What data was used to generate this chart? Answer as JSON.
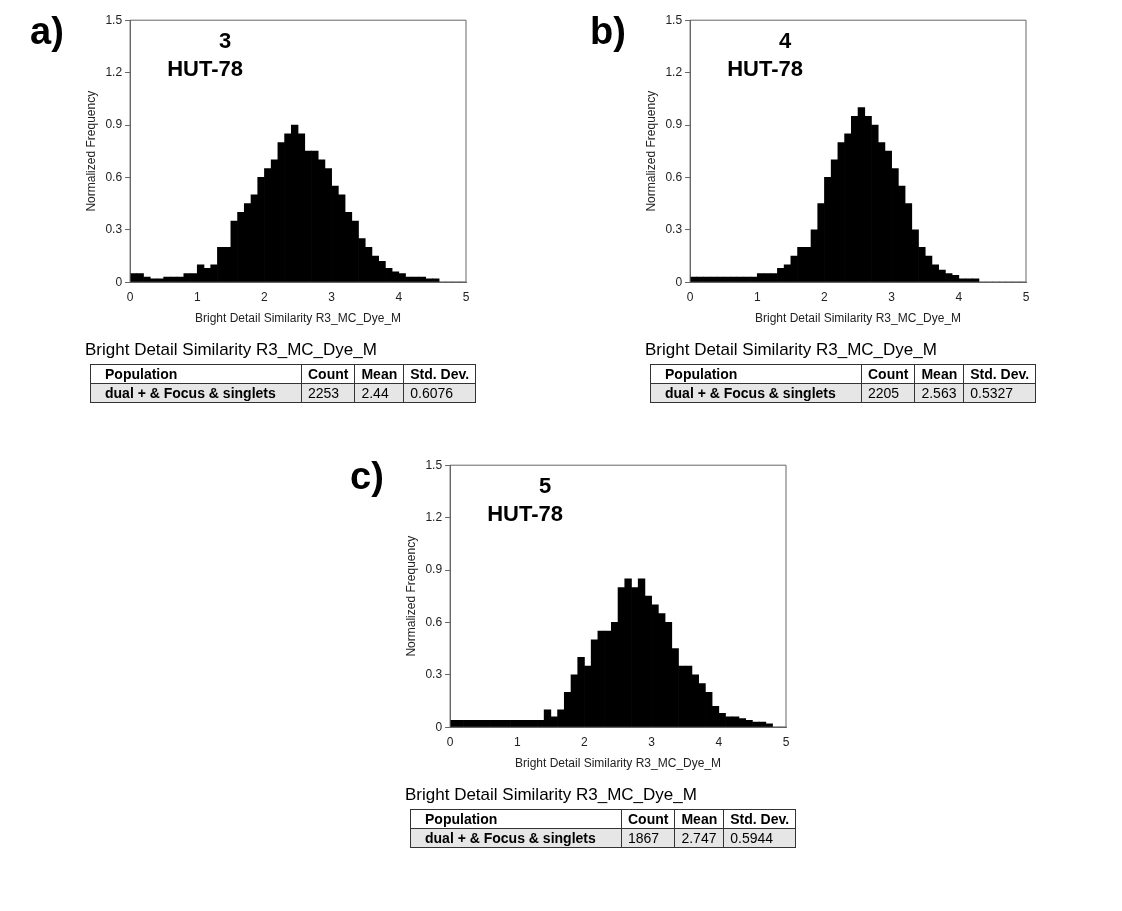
{
  "chart_data": [
    {
      "type": "histogram",
      "title": "a)",
      "xlabel": "Bright Detail Similarity R3_MC_Dye_M",
      "ylabel": "Normalized Frequency",
      "color": "#000000",
      "grid": false,
      "xlim": [
        0,
        5
      ],
      "xticks": [
        0,
        1,
        2,
        3,
        4,
        5
      ],
      "ylim": [
        0,
        1.5
      ],
      "yticks": [
        0,
        0.3,
        0.6,
        0.9,
        1.2,
        1.5
      ],
      "bins": [
        0,
        0.1,
        0.2,
        0.3,
        0.4,
        0.5,
        0.6,
        0.7,
        0.8,
        0.9,
        1,
        1.1,
        1.2,
        1.3,
        1.4,
        1.5,
        1.6,
        1.7,
        1.8,
        1.9,
        2,
        2.1,
        2.2,
        2.3,
        2.4,
        2.5,
        2.6,
        2.7,
        2.8,
        2.9,
        3,
        3.1,
        3.2,
        3.3,
        3.4,
        3.5,
        3.6,
        3.7,
        3.8,
        3.9,
        4,
        4.1,
        4.2,
        4.3,
        4.4,
        4.5,
        4.6,
        4.7,
        4.8,
        4.9,
        5
      ],
      "values": [
        0.05,
        0.05,
        0.03,
        0.02,
        0.02,
        0.03,
        0.03,
        0.03,
        0.05,
        0.05,
        0.1,
        0.08,
        0.1,
        0.2,
        0.2,
        0.35,
        0.4,
        0.45,
        0.5,
        0.6,
        0.65,
        0.7,
        0.8,
        0.85,
        0.9,
        0.85,
        0.75,
        0.75,
        0.7,
        0.65,
        0.55,
        0.5,
        0.4,
        0.35,
        0.25,
        0.2,
        0.15,
        0.12,
        0.08,
        0.06,
        0.05,
        0.03,
        0.03,
        0.03,
        0.02,
        0.02,
        0,
        0,
        0,
        0
      ],
      "annotations": [
        "3",
        "HUT-78",
        "Bright Detail Similarity R3_MC_Dye_M",
        "Population",
        "Count",
        "Mean",
        "Std. Dev.",
        "dual + & Focus & singlets",
        "2253",
        "2.44",
        "0.6076"
      ]
    },
    {
      "type": "histogram",
      "title": "b)",
      "xlabel": "Bright Detail Similarity R3_MC_Dye_M",
      "ylabel": "Normalized Frequency",
      "color": "#000000",
      "grid": false,
      "xlim": [
        0,
        5
      ],
      "xticks": [
        0,
        1,
        2,
        3,
        4,
        5
      ],
      "ylim": [
        0,
        1.5
      ],
      "yticks": [
        0,
        0.3,
        0.6,
        0.9,
        1.2,
        1.5
      ],
      "bins": [
        0,
        0.1,
        0.2,
        0.3,
        0.4,
        0.5,
        0.6,
        0.7,
        0.8,
        0.9,
        1,
        1.1,
        1.2,
        1.3,
        1.4,
        1.5,
        1.6,
        1.7,
        1.8,
        1.9,
        2,
        2.1,
        2.2,
        2.3,
        2.4,
        2.5,
        2.6,
        2.7,
        2.8,
        2.9,
        3,
        3.1,
        3.2,
        3.3,
        3.4,
        3.5,
        3.6,
        3.7,
        3.8,
        3.9,
        4,
        4.1,
        4.2,
        4.3,
        4.4,
        4.5,
        4.6,
        4.7,
        4.8,
        4.9,
        5
      ],
      "values": [
        0.03,
        0.03,
        0.03,
        0.03,
        0.03,
        0.03,
        0.03,
        0.03,
        0.03,
        0.03,
        0.05,
        0.05,
        0.05,
        0.08,
        0.1,
        0.15,
        0.2,
        0.2,
        0.3,
        0.45,
        0.6,
        0.7,
        0.8,
        0.85,
        0.95,
        1.0,
        0.95,
        0.9,
        0.8,
        0.75,
        0.65,
        0.55,
        0.45,
        0.3,
        0.2,
        0.15,
        0.1,
        0.07,
        0.05,
        0.04,
        0.02,
        0.02,
        0.02,
        0,
        0,
        0,
        0,
        0,
        0,
        0
      ],
      "annotations": [
        "4",
        "HUT-78",
        "Bright Detail Similarity R3_MC_Dye_M",
        "Population",
        "Count",
        "Mean",
        "Std. Dev.",
        "dual + & Focus & singlets",
        "2205",
        "2.563",
        "0.5327"
      ]
    },
    {
      "type": "histogram",
      "title": "c)",
      "xlabel": "Bright Detail Similarity R3_MC_Dye_M",
      "ylabel": "Normalized Frequency",
      "color": "#000000",
      "grid": false,
      "xlim": [
        0,
        5
      ],
      "xticks": [
        0,
        1,
        2,
        3,
        4,
        5
      ],
      "ylim": [
        0,
        1.5
      ],
      "yticks": [
        0,
        0.3,
        0.6,
        0.9,
        1.2,
        1.5
      ],
      "bins": [
        0,
        0.1,
        0.2,
        0.3,
        0.4,
        0.5,
        0.6,
        0.7,
        0.8,
        0.9,
        1,
        1.1,
        1.2,
        1.3,
        1.4,
        1.5,
        1.6,
        1.7,
        1.8,
        1.9,
        2,
        2.1,
        2.2,
        2.3,
        2.4,
        2.5,
        2.6,
        2.7,
        2.8,
        2.9,
        3,
        3.1,
        3.2,
        3.3,
        3.4,
        3.5,
        3.6,
        3.7,
        3.8,
        3.9,
        4,
        4.1,
        4.2,
        4.3,
        4.4,
        4.5,
        4.6,
        4.7,
        4.8,
        4.9,
        5
      ],
      "values": [
        0.04,
        0.04,
        0.04,
        0.04,
        0.04,
        0.04,
        0.04,
        0.04,
        0.04,
        0.04,
        0.04,
        0.04,
        0.04,
        0.04,
        0.1,
        0.06,
        0.1,
        0.2,
        0.3,
        0.4,
        0.35,
        0.5,
        0.55,
        0.55,
        0.6,
        0.8,
        0.85,
        0.8,
        0.85,
        0.75,
        0.7,
        0.65,
        0.6,
        0.45,
        0.35,
        0.35,
        0.3,
        0.25,
        0.2,
        0.12,
        0.08,
        0.06,
        0.06,
        0.05,
        0.04,
        0.03,
        0.03,
        0.02,
        0,
        0
      ],
      "annotations": [
        "5",
        "HUT-78",
        "Bright Detail Similarity R3_MC_Dye_M",
        "Population",
        "Count",
        "Mean",
        "Std. Dev.",
        "dual + & Focus & singlets",
        "1867",
        "2.747",
        "0.5944"
      ]
    }
  ]
}
